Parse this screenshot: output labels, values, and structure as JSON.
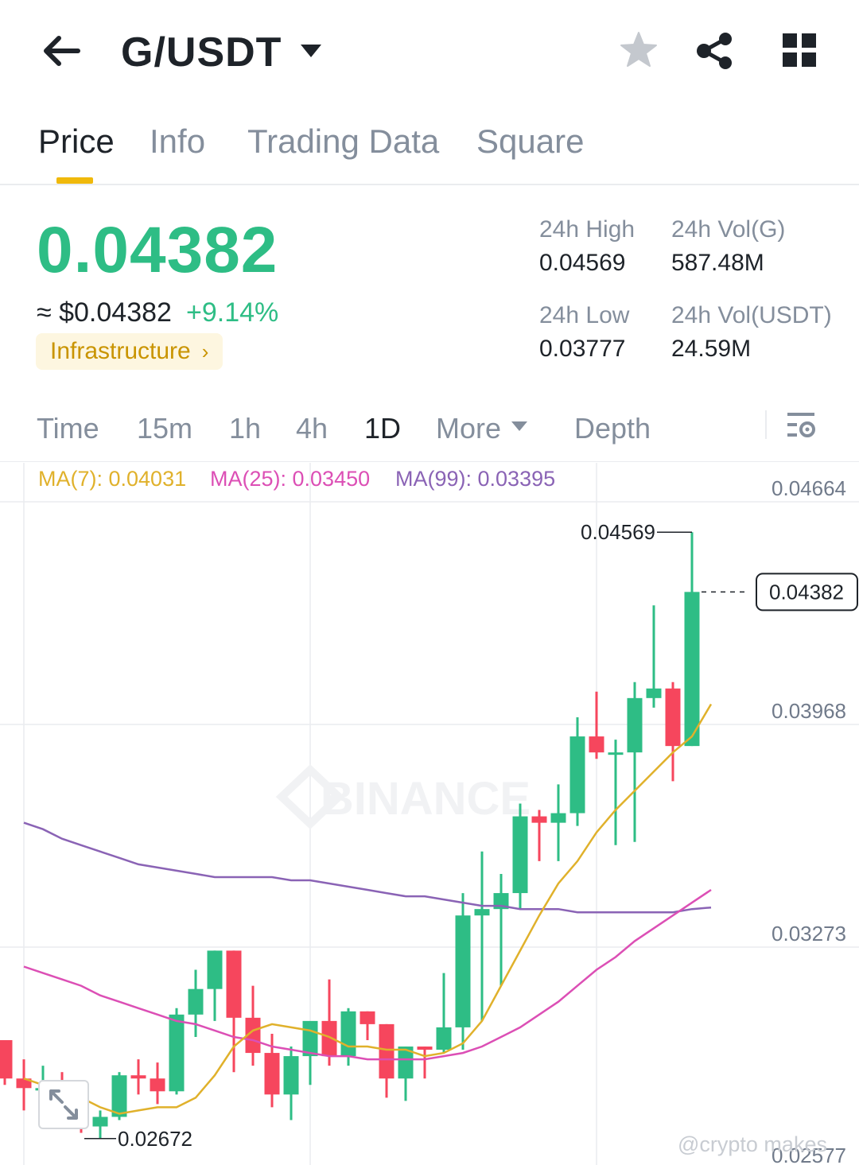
{
  "header": {
    "pair": "G/USDT",
    "back_icon": "arrow-left-icon",
    "pair_menu_icon": "caret-down-icon",
    "favorite_icon": "star-icon",
    "share_icon": "share-icon",
    "menu_icon": "grid-icon"
  },
  "tabs": [
    {
      "label": "Price",
      "active": true
    },
    {
      "label": "Info",
      "active": false
    },
    {
      "label": "Trading Data",
      "active": false
    },
    {
      "label": "Square",
      "active": false
    }
  ],
  "price": {
    "last": "0.04382",
    "usd": "≈ $0.04382",
    "change": "+9.14%",
    "tag": "Infrastructure",
    "tag_chevron": "›"
  },
  "stats": {
    "high_label": "24h High",
    "high_value": "0.04569",
    "low_label": "24h Low",
    "low_value": "0.03777",
    "vol_base_label": "24h Vol(G)",
    "vol_base_value": "587.48M",
    "vol_quote_label": "24h Vol(USDT)",
    "vol_quote_value": "24.59M"
  },
  "intervals": {
    "items": [
      "Time",
      "15m",
      "1h",
      "4h",
      "1D",
      "More",
      "Depth"
    ],
    "active": "1D"
  },
  "ma_legend": {
    "ma7": "MA(7): 0.04031",
    "ma25": "MA(25): 0.03450",
    "ma99": "MA(99): 0.03395"
  },
  "colors": {
    "up": "#2ebd85",
    "down": "#f6465d",
    "ma7": "#e0b12b",
    "ma25": "#dc4fb5",
    "ma99": "#8a63b5",
    "accent": "#f0b90b"
  },
  "chart_data": {
    "type": "candlestick",
    "y_axis_labels": [
      "0.04664",
      "0.03968",
      "0.03273",
      "0.02577"
    ],
    "ylim": [
      0.02577,
      0.04664
    ],
    "high_annotation": "0.04569",
    "low_annotation": "0.02672",
    "current_price_label": "0.04382",
    "grid": true,
    "watermark": "BINANCE",
    "candles": [
      {
        "o": 0.0298,
        "h": 0.0298,
        "l": 0.0284,
        "c": 0.0286
      },
      {
        "o": 0.0286,
        "h": 0.0292,
        "l": 0.0276,
        "c": 0.0283
      },
      {
        "o": 0.0283,
        "h": 0.029,
        "l": 0.0277,
        "c": 0.0283
      },
      {
        "o": 0.0283,
        "h": 0.0288,
        "l": 0.0275,
        "c": 0.0279
      },
      {
        "o": 0.0279,
        "h": 0.0281,
        "l": 0.0269,
        "c": 0.0277
      },
      {
        "o": 0.0271,
        "h": 0.0276,
        "l": 0.02672,
        "c": 0.0274
      },
      {
        "o": 0.0274,
        "h": 0.0288,
        "l": 0.0273,
        "c": 0.0287
      },
      {
        "o": 0.0287,
        "h": 0.0292,
        "l": 0.0281,
        "c": 0.0286
      },
      {
        "o": 0.0286,
        "h": 0.0291,
        "l": 0.0278,
        "c": 0.0282
      },
      {
        "o": 0.0282,
        "h": 0.0308,
        "l": 0.0281,
        "c": 0.0306
      },
      {
        "o": 0.0306,
        "h": 0.032,
        "l": 0.0299,
        "c": 0.0314
      },
      {
        "o": 0.0314,
        "h": 0.0326,
        "l": 0.0304,
        "c": 0.0326
      },
      {
        "o": 0.0326,
        "h": 0.0326,
        "l": 0.0288,
        "c": 0.0305
      },
      {
        "o": 0.0305,
        "h": 0.0315,
        "l": 0.029,
        "c": 0.0294
      },
      {
        "o": 0.0294,
        "h": 0.03,
        "l": 0.0277,
        "c": 0.0281
      },
      {
        "o": 0.0281,
        "h": 0.0296,
        "l": 0.0273,
        "c": 0.0293
      },
      {
        "o": 0.0293,
        "h": 0.0303,
        "l": 0.0284,
        "c": 0.0304
      },
      {
        "o": 0.0304,
        "h": 0.0317,
        "l": 0.029,
        "c": 0.0293
      },
      {
        "o": 0.0293,
        "h": 0.0308,
        "l": 0.029,
        "c": 0.0307
      },
      {
        "o": 0.0307,
        "h": 0.0307,
        "l": 0.0298,
        "c": 0.0303
      },
      {
        "o": 0.0303,
        "h": 0.0303,
        "l": 0.028,
        "c": 0.0286
      },
      {
        "o": 0.0286,
        "h": 0.0296,
        "l": 0.0279,
        "c": 0.0296
      },
      {
        "o": 0.0296,
        "h": 0.0296,
        "l": 0.0286,
        "c": 0.0295
      },
      {
        "o": 0.0295,
        "h": 0.0319,
        "l": 0.0294,
        "c": 0.0302
      },
      {
        "o": 0.0302,
        "h": 0.0344,
        "l": 0.0295,
        "c": 0.0337
      },
      {
        "o": 0.0337,
        "h": 0.0357,
        "l": 0.0304,
        "c": 0.0339
      },
      {
        "o": 0.0339,
        "h": 0.035,
        "l": 0.0315,
        "c": 0.0344
      },
      {
        "o": 0.0344,
        "h": 0.0372,
        "l": 0.0339,
        "c": 0.0368
      },
      {
        "o": 0.0368,
        "h": 0.037,
        "l": 0.0354,
        "c": 0.0366
      },
      {
        "o": 0.0366,
        "h": 0.0378,
        "l": 0.0354,
        "c": 0.0369
      },
      {
        "o": 0.0369,
        "h": 0.0399,
        "l": 0.0365,
        "c": 0.0393
      },
      {
        "o": 0.0393,
        "h": 0.0407,
        "l": 0.0386,
        "c": 0.0388
      },
      {
        "o": 0.0388,
        "h": 0.0392,
        "l": 0.0359,
        "c": 0.0388
      },
      {
        "o": 0.0388,
        "h": 0.041,
        "l": 0.036,
        "c": 0.0405
      },
      {
        "o": 0.0405,
        "h": 0.0434,
        "l": 0.0402,
        "c": 0.0408
      },
      {
        "o": 0.0408,
        "h": 0.041,
        "l": 0.0379,
        "c": 0.039
      },
      {
        "o": 0.039,
        "h": 0.04569,
        "l": 0.039,
        "c": 0.04382
      }
    ],
    "ma7": [
      0.0286,
      0.0284,
      0.0283,
      0.028,
      0.0277,
      0.0275,
      0.0276,
      0.0277,
      0.0277,
      0.028,
      0.0287,
      0.0296,
      0.0301,
      0.0303,
      0.0302,
      0.0301,
      0.0299,
      0.0296,
      0.0296,
      0.0295,
      0.0295,
      0.0293,
      0.0294,
      0.0297,
      0.0304,
      0.0315,
      0.0326,
      0.0337,
      0.0347,
      0.0354,
      0.0363,
      0.037,
      0.0376,
      0.0382,
      0.0388,
      0.0393,
      0.04031
    ],
    "ma25": [
      0.0321,
      0.0319,
      0.0317,
      0.0315,
      0.0312,
      0.031,
      0.0308,
      0.0306,
      0.0304,
      0.0303,
      0.0301,
      0.0299,
      0.0298,
      0.0296,
      0.0295,
      0.0294,
      0.0293,
      0.0293,
      0.0292,
      0.0292,
      0.0292,
      0.0292,
      0.0293,
      0.0294,
      0.0296,
      0.0299,
      0.0302,
      0.0306,
      0.031,
      0.0315,
      0.032,
      0.0324,
      0.0329,
      0.0333,
      0.0337,
      0.0341,
      0.0345
    ],
    "ma99": [
      0.0366,
      0.0364,
      0.0361,
      0.0359,
      0.0357,
      0.0355,
      0.0353,
      0.0352,
      0.0351,
      0.035,
      0.0349,
      0.0349,
      0.0349,
      0.0349,
      0.0348,
      0.0348,
      0.0347,
      0.0346,
      0.0345,
      0.0344,
      0.0343,
      0.0343,
      0.0342,
      0.0341,
      0.034,
      0.034,
      0.0339,
      0.0339,
      0.0339,
      0.0338,
      0.0338,
      0.0338,
      0.0338,
      0.0338,
      0.0338,
      0.0339,
      0.03395
    ]
  },
  "overlay": {
    "expand_icon": "expand-icon",
    "credit": "@crypto makes"
  }
}
